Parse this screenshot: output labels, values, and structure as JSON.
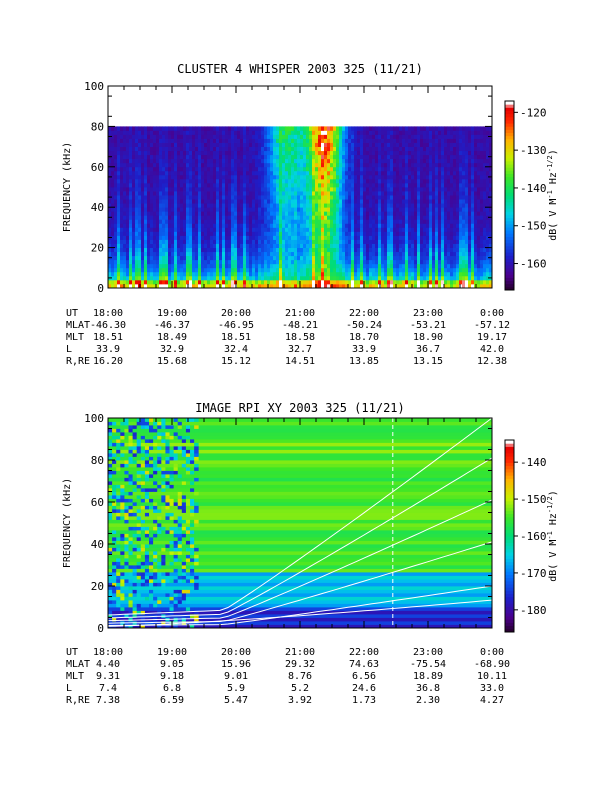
{
  "chart_data": [
    {
      "type": "heatmap",
      "title": "CLUSTER 4 WHISPER 2003 325 (11/21)",
      "ylabel": "FREQUENCY (kHz)",
      "ylim": [
        0,
        100
      ],
      "yticks": [
        "0",
        "20",
        "40",
        "60",
        "80",
        "100"
      ],
      "xticks": [
        "18:00",
        "19:00",
        "20:00",
        "21:00",
        "22:00",
        "23:00",
        "0:00"
      ],
      "data_top_khz": 80,
      "colorbar": {
        "ticks": [
          "-120",
          "-130",
          "-140",
          "-150",
          "-160"
        ],
        "range": [
          -167,
          -117
        ],
        "label_parts": [
          "dB( V M",
          "-1",
          " Hz",
          "-1/2",
          ")"
        ]
      },
      "ephemeris": [
        {
          "label": "UT",
          "values": [
            "18:00",
            "19:00",
            "20:00",
            "21:00",
            "22:00",
            "23:00",
            "0:00"
          ]
        },
        {
          "label": "MLAT",
          "values": [
            "-46.30",
            "-46.37",
            "-46.95",
            "-48.21",
            "-50.24",
            "-53.21",
            "-57.12"
          ]
        },
        {
          "label": "MLT",
          "values": [
            "18.51",
            "18.49",
            "18.51",
            "18.58",
            "18.70",
            "18.90",
            "19.17"
          ]
        },
        {
          "label": "L",
          "values": [
            "33.9",
            "32.9",
            "32.4",
            "32.7",
            "33.9",
            "36.7",
            "42.0"
          ]
        },
        {
          "label": "R,RE",
          "values": [
            "16.20",
            "15.68",
            "15.12",
            "14.51",
            "13.85",
            "13.15",
            "12.38"
          ]
        }
      ]
    },
    {
      "type": "heatmap",
      "title": "IMAGE RPI XY 2003 325 (11/21)",
      "ylabel": "FREQUENCY (kHz)",
      "ylim": [
        0,
        100
      ],
      "yticks": [
        "0",
        "20",
        "40",
        "60",
        "80",
        "100"
      ],
      "xticks": [
        "18:00",
        "19:00",
        "20:00",
        "21:00",
        "22:00",
        "23:00",
        "0:00"
      ],
      "colorbar": {
        "ticks": [
          "-140",
          "-150",
          "-160",
          "-170",
          "-180"
        ],
        "range": [
          -186,
          -134
        ],
        "label_parts": [
          "dB( V M",
          "-1",
          " Hz",
          "-1/2",
          ")"
        ]
      },
      "ephemeris": [
        {
          "label": "UT",
          "values": [
            "18:00",
            "19:00",
            "20:00",
            "21:00",
            "22:00",
            "23:00",
            "0:00"
          ]
        },
        {
          "label": "MLAT",
          "values": [
            "4.40",
            "9.05",
            "15.96",
            "29.32",
            "74.63",
            "-75.54",
            "-68.90"
          ]
        },
        {
          "label": "MLT",
          "values": [
            "9.31",
            "9.18",
            "9.01",
            "8.76",
            "6.56",
            "18.89",
            "10.11"
          ]
        },
        {
          "label": "L",
          "values": [
            "7.4",
            "6.8",
            "5.9",
            "5.2",
            "24.6",
            "36.8",
            "33.0"
          ]
        },
        {
          "label": "R,RE",
          "values": [
            "7.38",
            "6.59",
            "5.47",
            "3.92",
            "1.73",
            "2.30",
            "4.27"
          ]
        }
      ]
    }
  ]
}
